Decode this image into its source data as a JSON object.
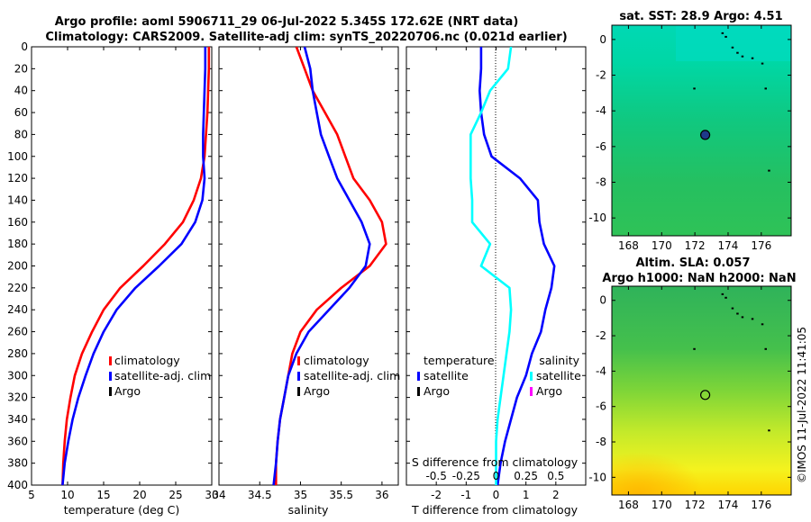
{
  "title": {
    "line1": "Argo profile: aoml 5906711_29 06-Jul-2022 5.345S 172.62E (NRT data)",
    "line2": "Climatology: CARS2009. Satellite-adj clim: synTS_20220706.nc (0.021d earlier)"
  },
  "credit": "©IMOS 11-Jul-2022 11:41:05",
  "colors": {
    "climatology": "#ff0000",
    "satellite": "#0000ff",
    "argo": "#000000",
    "salinity_satellite": "#00ffff",
    "salinity_argo": "#ff00ff"
  },
  "chart_data": [
    {
      "type": "line",
      "name": "temperature-profile",
      "xlabel": "temperature (deg C)",
      "ylabel": "",
      "xlim": [
        5,
        30
      ],
      "ylim": [
        400,
        0
      ],
      "xticks": [
        "5",
        "10",
        "15",
        "20",
        "25",
        "30"
      ],
      "yticks": [
        "0",
        "20",
        "40",
        "60",
        "80",
        "100",
        "120",
        "140",
        "160",
        "180",
        "200",
        "220",
        "240",
        "260",
        "280",
        "300",
        "320",
        "340",
        "360",
        "380",
        "400"
      ],
      "legend": [
        "climatology",
        "satellite-adj. clim",
        "Argo"
      ],
      "series": [
        {
          "name": "climatology",
          "color": "#ff0000",
          "x": [
            29.6,
            29.6,
            29.5,
            29.4,
            29.2,
            29.0,
            28.5,
            27.5,
            26.0,
            23.5,
            20.5,
            17.3,
            15.0,
            13.4,
            12.0,
            11.0,
            10.4,
            9.9,
            9.6,
            9.4,
            9.3
          ],
          "y": [
            0,
            20,
            40,
            60,
            80,
            100,
            120,
            140,
            160,
            180,
            200,
            220,
            240,
            260,
            280,
            300,
            320,
            340,
            360,
            380,
            400
          ]
        },
        {
          "name": "satellite-adj. clim",
          "color": "#0000ff",
          "x": [
            29.1,
            29.1,
            29.0,
            28.9,
            28.8,
            28.8,
            29.0,
            28.7,
            27.7,
            25.8,
            22.7,
            19.4,
            16.8,
            15.0,
            13.6,
            12.5,
            11.5,
            10.7,
            10.1,
            9.6,
            9.3
          ],
          "y": [
            0,
            20,
            40,
            60,
            80,
            100,
            120,
            140,
            160,
            180,
            200,
            220,
            240,
            260,
            280,
            300,
            320,
            340,
            360,
            380,
            400
          ]
        }
      ]
    },
    {
      "type": "line",
      "name": "salinity-profile",
      "xlabel": "salinity",
      "xlim": [
        34,
        36.2
      ],
      "ylim": [
        400,
        0
      ],
      "xticks": [
        "34",
        "34.5",
        "35",
        "35.5",
        "36"
      ],
      "legend": [
        "climatology",
        "satellite-adj. clim",
        "Argo"
      ],
      "series": [
        {
          "name": "climatology",
          "color": "#ff0000",
          "x": [
            34.95,
            35.05,
            35.15,
            35.3,
            35.45,
            35.55,
            35.65,
            35.85,
            36.0,
            36.05,
            35.85,
            35.5,
            35.2,
            35.0,
            34.9,
            34.85,
            34.8,
            34.75,
            34.72,
            34.7,
            34.7
          ],
          "y": [
            0,
            20,
            40,
            60,
            80,
            100,
            120,
            140,
            160,
            180,
            200,
            220,
            240,
            260,
            280,
            300,
            320,
            340,
            360,
            380,
            400
          ]
        },
        {
          "name": "satellite-adj. clim",
          "color": "#0000ff",
          "x": [
            35.05,
            35.12,
            35.15,
            35.2,
            35.25,
            35.35,
            35.45,
            35.6,
            35.75,
            35.85,
            35.8,
            35.6,
            35.35,
            35.1,
            34.95,
            34.85,
            34.8,
            34.75,
            34.72,
            34.7,
            34.67
          ],
          "y": [
            0,
            20,
            40,
            60,
            80,
            100,
            120,
            140,
            160,
            180,
            200,
            220,
            240,
            260,
            280,
            300,
            320,
            340,
            360,
            380,
            400
          ]
        }
      ]
    },
    {
      "type": "line",
      "name": "difference-profile",
      "xlabel": "T difference from climatology",
      "top_xlabel": "S difference from climatology",
      "xlim": [
        -3,
        3
      ],
      "ylim": [
        400,
        0
      ],
      "xticks": [
        "-2",
        "-1",
        "0",
        "1",
        "2"
      ],
      "top_xticks": [
        "-0.5",
        "-0.25",
        "0",
        "0.25",
        "0.5"
      ],
      "legend_left_title": "temperature",
      "legend_right_title": "salinity",
      "legend_left": [
        "satellite",
        "Argo"
      ],
      "legend_right": [
        "satellite",
        "Argo"
      ],
      "series": [
        {
          "name": "temperature satellite",
          "color": "#0000ff",
          "x": [
            -0.5,
            -0.5,
            -0.55,
            -0.5,
            -0.4,
            -0.15,
            0.8,
            1.4,
            1.45,
            1.6,
            1.95,
            1.85,
            1.65,
            1.5,
            1.2,
            1.0,
            0.7,
            0.5,
            0.3,
            0.15,
            0.05
          ],
          "y": [
            0,
            20,
            40,
            60,
            80,
            100,
            120,
            140,
            160,
            180,
            200,
            220,
            240,
            260,
            280,
            300,
            320,
            340,
            360,
            380,
            400
          ]
        },
        {
          "name": "salinity satellite",
          "color": "#00ffff",
          "x": [
            0.5,
            0.4,
            -0.2,
            -0.5,
            -0.85,
            -0.85,
            -0.85,
            -0.8,
            -0.8,
            -0.2,
            -0.5,
            0.45,
            0.5,
            0.45,
            0.35,
            0.25,
            0.15,
            0.05,
            0.0,
            0.0,
            0.0
          ],
          "y": [
            0,
            20,
            40,
            60,
            80,
            100,
            120,
            140,
            160,
            180,
            200,
            220,
            240,
            260,
            280,
            300,
            320,
            340,
            360,
            380,
            400
          ]
        }
      ]
    },
    {
      "type": "heatmap",
      "name": "sst-map",
      "title": "sat. SST: 28.9 Argo: 4.51",
      "xlim": [
        167,
        177.8
      ],
      "ylim": [
        -11,
        0.8
      ],
      "xticks": [
        "168",
        "170",
        "172",
        "174",
        "176"
      ],
      "yticks": [
        "0",
        "-2",
        "-4",
        "-6",
        "-8",
        "-10"
      ],
      "float_position": {
        "lon": 172.62,
        "lat": -5.345
      }
    },
    {
      "type": "heatmap",
      "name": "sla-map",
      "title_line1": "Altim. SLA: 0.057",
      "title_line2": "Argo h1000: NaN h2000: NaN",
      "xlim": [
        167,
        177.8
      ],
      "ylim": [
        -11,
        0.8
      ],
      "xticks": [
        "168",
        "170",
        "172",
        "174",
        "176"
      ],
      "yticks": [
        "0",
        "-2",
        "-4",
        "-6",
        "-8",
        "-10"
      ],
      "float_position": {
        "lon": 172.62,
        "lat": -5.345
      }
    }
  ]
}
